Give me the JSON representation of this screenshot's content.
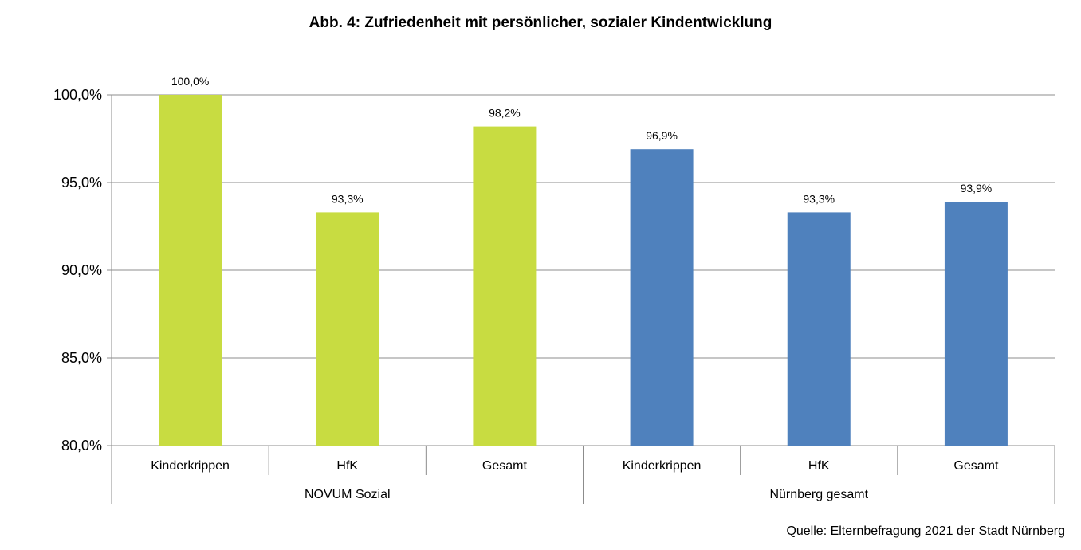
{
  "chart_data": {
    "type": "bar",
    "title": "Abb. 4: Zufriedenheit mit persönlicher, sozialer Kindentwicklung",
    "groups": [
      {
        "name": "NOVUM Sozial",
        "color": "#c8dc41",
        "categories": [
          "Kinderkrippen",
          "HfK",
          "Gesamt"
        ],
        "values": [
          100.0,
          93.3,
          98.2
        ],
        "labels": [
          "100,0%",
          "93,3%",
          "98,2%"
        ]
      },
      {
        "name": "Nürnberg gesamt",
        "color": "#4f81bd",
        "categories": [
          "Kinderkrippen",
          "HfK",
          "Gesamt"
        ],
        "values": [
          96.9,
          93.3,
          93.9
        ],
        "labels": [
          "96,9%",
          "93,3%",
          "93,9%"
        ]
      }
    ],
    "ylim": [
      80,
      100
    ],
    "yticks": [
      80,
      85,
      90,
      95,
      100
    ],
    "ytick_labels": [
      "80,0%",
      "85,0%",
      "90,0%",
      "95,0%",
      "100,0%"
    ],
    "grid": true,
    "legend": "none"
  },
  "source": "Quelle: Elternbefragung 2021 der Stadt Nürnberg"
}
